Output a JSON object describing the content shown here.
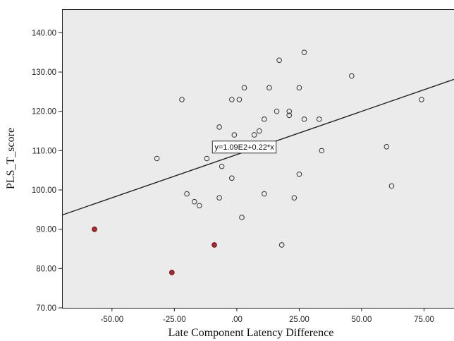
{
  "chart_data": {
    "type": "scatter",
    "xlabel": "Late Component Latency Difference",
    "ylabel": "PLS_T_score",
    "xlim": [
      -70,
      87
    ],
    "ylim": [
      70,
      146
    ],
    "x_ticks": [
      -50,
      -25,
      0,
      25,
      50,
      75
    ],
    "x_tick_labels": [
      "-50.00",
      "-25.00",
      ".00",
      "25.00",
      "50.00",
      "75.00"
    ],
    "y_ticks": [
      70,
      80,
      90,
      100,
      110,
      120,
      130,
      140
    ],
    "y_tick_labels": [
      "70.00",
      "80.00",
      "90.00",
      "100.00",
      "110.00",
      "120.00",
      "130.00",
      "140.00"
    ],
    "grid": false,
    "colors": {
      "plot_background": "#ebebeb",
      "fit_line": "#222222",
      "open_marker_edge": "#333333",
      "highlight_marker_fill": "#b3262b",
      "highlight_marker_edge": "#5a1010"
    },
    "series": [
      {
        "marker": "open-circle",
        "points": [
          {
            "x": -32,
            "y": 108
          },
          {
            "x": -22,
            "y": 123
          },
          {
            "x": -20,
            "y": 99
          },
          {
            "x": -17,
            "y": 97
          },
          {
            "x": -15,
            "y": 96
          },
          {
            "x": -12,
            "y": 108
          },
          {
            "x": -7,
            "y": 116
          },
          {
            "x": -7,
            "y": 98
          },
          {
            "x": -6,
            "y": 106
          },
          {
            "x": -2,
            "y": 123
          },
          {
            "x": -2,
            "y": 103
          },
          {
            "x": -1,
            "y": 114
          },
          {
            "x": 1,
            "y": 123
          },
          {
            "x": 2,
            "y": 93
          },
          {
            "x": 3,
            "y": 126
          },
          {
            "x": 7,
            "y": 114
          },
          {
            "x": 9,
            "y": 115
          },
          {
            "x": 11,
            "y": 118
          },
          {
            "x": 11,
            "y": 99
          },
          {
            "x": 13,
            "y": 126
          },
          {
            "x": 16,
            "y": 120
          },
          {
            "x": 17,
            "y": 133
          },
          {
            "x": 18,
            "y": 86
          },
          {
            "x": 21,
            "y": 120
          },
          {
            "x": 21,
            "y": 119
          },
          {
            "x": 23,
            "y": 98
          },
          {
            "x": 25,
            "y": 126
          },
          {
            "x": 25,
            "y": 104
          },
          {
            "x": 27,
            "y": 135
          },
          {
            "x": 27,
            "y": 118
          },
          {
            "x": 33,
            "y": 118
          },
          {
            "x": 34,
            "y": 110
          },
          {
            "x": 46,
            "y": 129
          },
          {
            "x": 60,
            "y": 111
          },
          {
            "x": 62,
            "y": 101
          },
          {
            "x": 74,
            "y": 123
          }
        ]
      },
      {
        "marker": "filled-circle",
        "points": [
          {
            "x": -57,
            "y": 90
          },
          {
            "x": -26,
            "y": 79
          },
          {
            "x": -9,
            "y": 86
          }
        ]
      }
    ],
    "fit_line": {
      "intercept": 109,
      "slope": 0.22,
      "equation_label": "y=1.09E2+0.22*x",
      "label_anchor": {
        "x": 3,
        "y": 111
      }
    }
  }
}
